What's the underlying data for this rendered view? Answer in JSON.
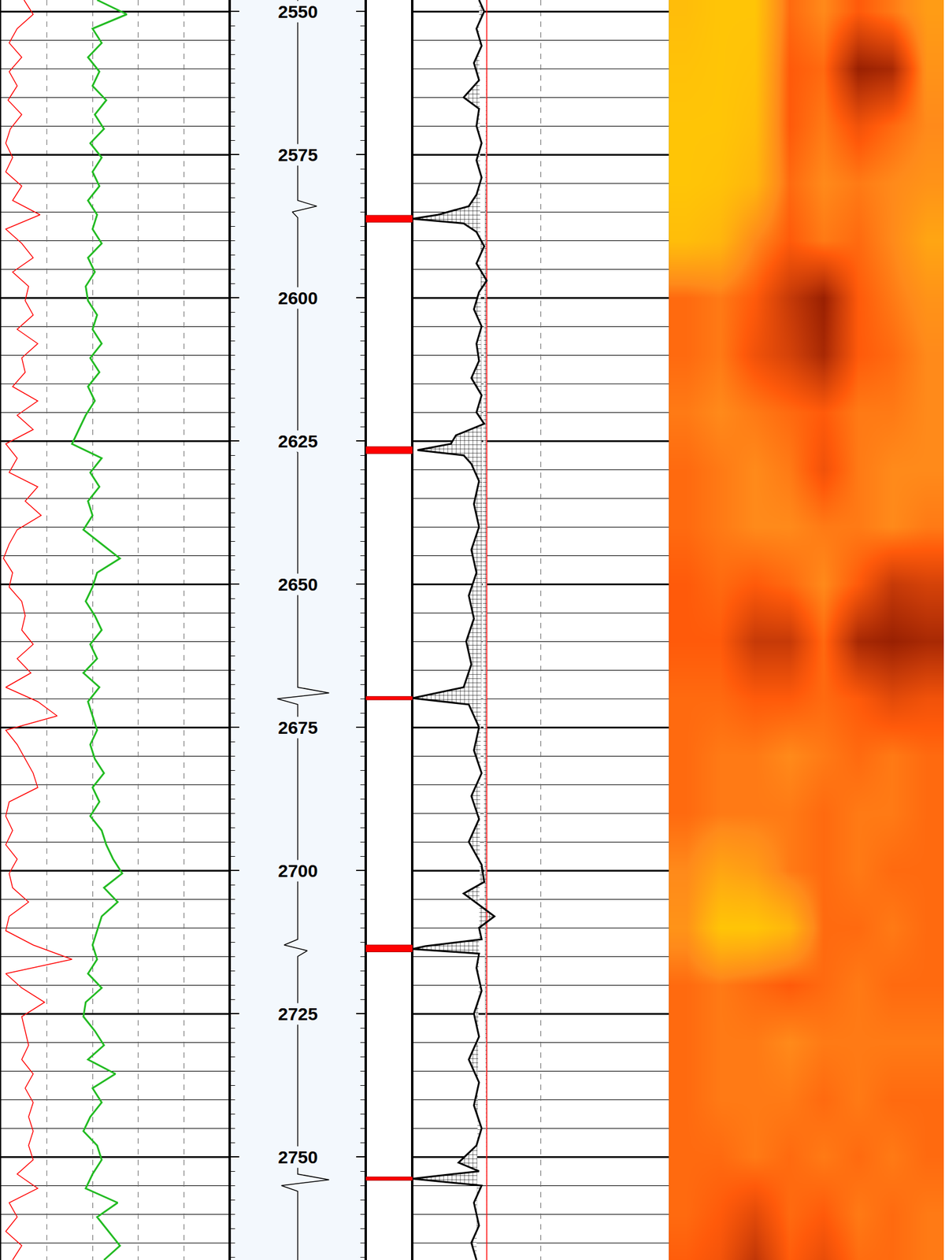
{
  "chart_data": {
    "type": "well_log",
    "ylim": [
      2768,
      2548
    ],
    "yticks": [
      2550,
      2575,
      2600,
      2625,
      2650,
      2675,
      2700,
      2725,
      2750
    ],
    "minor_yticks": [
      2550,
      2555,
      2560,
      2565,
      2570,
      2575,
      2580,
      2585,
      2590,
      2595,
      2600,
      2605,
      2610,
      2615,
      2620,
      2625,
      2630,
      2635,
      2640,
      2645,
      2650,
      2655,
      2660,
      2665,
      2670,
      2675,
      2680,
      2685,
      2690,
      2695,
      2700,
      2705,
      2710,
      2715,
      2720,
      2725,
      2730,
      2735,
      2740,
      2745,
      2750,
      2755,
      2760,
      2765
    ],
    "depth_ticks": [
      2550,
      2552.5,
      2555,
      2557.5,
      2560,
      2562.5,
      2565,
      2567.5,
      2570,
      2572.5,
      2575,
      2577.5,
      2580,
      2582.5,
      2585,
      2587.5,
      2590,
      2592.5,
      2595,
      2597.5,
      2600,
      2602.5,
      2605,
      2607.5,
      2610,
      2612.5,
      2615,
      2617.5,
      2620,
      2622.5,
      2625,
      2627.5,
      2630,
      2632.5,
      2635,
      2637.5,
      2640,
      2642.5,
      2645,
      2647.5,
      2650,
      2652.5,
      2655,
      2657.5,
      2660,
      2662.5,
      2665,
      2667.5,
      2670,
      2672.5,
      2675,
      2677.5,
      2680,
      2682.5,
      2685,
      2687.5,
      2690,
      2692.5,
      2695,
      2697.5,
      2700,
      2702.5,
      2705,
      2707.5,
      2710,
      2712.5,
      2715,
      2717.5,
      2720,
      2722.5,
      2725,
      2727.5,
      2730,
      2732.5,
      2735,
      2737.5,
      2740,
      2742.5,
      2745,
      2747.5,
      2750,
      2752.5,
      2755,
      2757.5,
      2760,
      2762.5,
      2765,
      2767.5
    ],
    "grid": true,
    "tick_labels": "y",
    "tracks": [
      {
        "type": "curves",
        "xlim": [
          0,
          100
        ],
        "xticks": [
          0,
          20,
          40,
          60,
          80,
          100
        ],
        "grid": true,
        "series": [
          {
            "color": "#ff0000",
            "line_style": "thin",
            "depths": [
              2548,
              2550.5,
              2553,
              2555.5,
              2558,
              2560.5,
              2563,
              2565.5,
              2568,
              2570.5,
              2573,
              2575.5,
              2578,
              2580.5,
              2583,
              2585.5,
              2588,
              2590.5,
              2593,
              2595.5,
              2598,
              2600.5,
              2603,
              2605.5,
              2608,
              2610.5,
              2613,
              2615.5,
              2618,
              2620.5,
              2623,
              2625.5,
              2628,
              2630.5,
              2633,
              2635.5,
              2638,
              2640.5,
              2643,
              2645.5,
              2648,
              2650.5,
              2653,
              2655.5,
              2658,
              2660.5,
              2663,
              2665.5,
              2668,
              2670.5,
              2673,
              2675.5,
              2678,
              2680.5,
              2683,
              2685.5,
              2688,
              2690.5,
              2693,
              2695.5,
              2698,
              2700.5,
              2703,
              2705.5,
              2708,
              2710.5,
              2713,
              2715.5,
              2718,
              2720.5,
              2723,
              2725.5,
              2728,
              2730.5,
              2733,
              2735.5,
              2738,
              2740.5,
              2743,
              2745.5,
              2748,
              2750.5,
              2753,
              2755.5,
              2758,
              2760.5,
              2763,
              2765.5,
              2768
            ],
            "values": [
              10,
              14,
              7,
              3.5,
              9,
              3.5,
              7,
              3,
              9,
              4,
              2,
              5,
              2,
              9,
              5,
              17,
              2,
              9,
              14,
              5,
              12,
              10.5,
              14,
              7,
              16,
              9,
              10.5,
              5,
              16,
              7,
              14,
              2,
              7,
              3.5,
              16,
              10.5,
              17.5,
              7,
              3.5,
              1,
              5,
              3.5,
              9,
              10.5,
              9,
              14,
              7,
              13,
              2,
              16,
              24.5,
              2,
              7,
              10.5,
              14,
              16,
              3.5,
              2,
              5,
              2,
              7,
              3.5,
              5,
              12,
              3.5,
              2,
              14,
              31,
              2,
              9,
              19,
              9,
              10.5,
              12,
              9,
              14,
              10.5,
              14,
              12,
              14,
              12,
              14,
              7,
              16,
              3.5,
              7,
              2,
              9,
              5
            ]
          },
          {
            "color": "#22bb22",
            "line_style": "bold",
            "depths": [
              2548,
              2550.5,
              2553,
              2555.5,
              2558,
              2560.5,
              2563,
              2565.5,
              2568,
              2570.5,
              2573,
              2575.5,
              2578,
              2580.5,
              2583,
              2585.5,
              2588,
              2590.5,
              2593,
              2595.5,
              2598,
              2600.5,
              2603,
              2605.5,
              2608,
              2610.5,
              2613,
              2615.5,
              2618,
              2620.5,
              2623,
              2625.5,
              2628,
              2630.5,
              2633,
              2635.5,
              2638,
              2640.5,
              2643,
              2645.5,
              2648,
              2650.5,
              2653,
              2655.5,
              2658,
              2660.5,
              2663,
              2665.5,
              2668,
              2670.5,
              2673,
              2675.5,
              2678,
              2680.5,
              2683,
              2685.5,
              2688,
              2690.5,
              2693,
              2695.5,
              2698,
              2700.5,
              2703,
              2705.5,
              2708,
              2710.5,
              2713,
              2715.5,
              2718,
              2720.5,
              2723,
              2725.5,
              2728,
              2730.5,
              2733,
              2735.5,
              2738,
              2740.5,
              2743,
              2745.5,
              2748,
              2750.5,
              2753,
              2755.5,
              2758,
              2760.5,
              2763,
              2765.5,
              2768
            ],
            "values": [
              42,
              55,
              40,
              44,
              38,
              43,
              40,
              46,
              41,
              45,
              39,
              44,
              40,
              43,
              38,
              42,
              40,
              44,
              38,
              41,
              37,
              38,
              42,
              40,
              44,
              39,
              43,
              38,
              41,
              37,
              34,
              31,
              44,
              39,
              43,
              38,
              40,
              36,
              44,
              52,
              42,
              40,
              37,
              41,
              44,
              39,
              42,
              36,
              43,
              38,
              40,
              42,
              39,
              41,
              45,
              40,
              43,
              39,
              44,
              46,
              49,
              53,
              45,
              51,
              44,
              42,
              40,
              42,
              38,
              44,
              37,
              36,
              41,
              45,
              38,
              50,
              40,
              44,
              39,
              36,
              42,
              44,
              40,
              37,
              51,
              42,
              47,
              52,
              45
            ]
          }
        ]
      },
      {
        "type": "depth",
        "xlim": [
          0,
          100
        ],
        "series": [
          {
            "color": "#000000",
            "line_style": "thin",
            "depths": [
              2548,
              2583,
              2584,
              2585,
              2586,
              2625,
              2626,
              2627,
              2668,
              2669,
              2670,
              2671,
              2712,
              2713,
              2714,
              2715,
              2753,
              2754,
              2755,
              2756,
              2768
            ],
            "values": [
              50,
              50,
              64,
              46,
              50,
              50,
              46,
              50,
              50,
              73,
              35,
              50,
              50,
              40,
              57,
              50,
              50,
              73,
              38,
              50,
              50
            ]
          }
        ]
      },
      {
        "type": "flags",
        "color": "#ff0000",
        "top": [
          2585.6,
          2626.0,
          2669.6,
          2713.0,
          2753.5
        ],
        "bottom": [
          2586.8,
          2627.2,
          2670.2,
          2714.2,
          2754.1
        ]
      },
      {
        "type": "curves",
        "xlim": [
          0,
          100
        ],
        "xticks": [
          0,
          50,
          100
        ],
        "grid": true,
        "cutoff": 29,
        "color": "#ff0000",
        "series": [
          {
            "color": "#000000",
            "line_style": "bold",
            "depths": [
              2548,
              2550,
              2553,
              2556,
              2559,
              2562,
              2565,
              2567,
              2570,
              2573,
              2576,
              2579,
              2582,
              2584,
              2585.5,
              2586.2,
              2587,
              2588.5,
              2591,
              2594,
              2597,
              2599,
              2602,
              2605,
              2608,
              2611,
              2614,
              2617,
              2620,
              2622,
              2624,
              2625.5,
              2626.6,
              2627.5,
              2629,
              2632,
              2636,
              2640,
              2644,
              2648,
              2652,
              2656,
              2660,
              2664,
              2668,
              2669.9,
              2671,
              2675,
              2679,
              2683,
              2687,
              2691,
              2695,
              2699,
              2702,
              2704,
              2706,
              2708,
              2710,
              2712,
              2713.2,
              2713.7,
              2714.5,
              2717,
              2721,
              2725,
              2729,
              2733,
              2737,
              2741,
              2745,
              2748,
              2751,
              2752.5,
              2753.8,
              2755,
              2758,
              2762,
              2765,
              2768
            ],
            "values": [
              26,
              28,
              25,
              27,
              24,
              26,
              20,
              26,
              25,
              27,
              25,
              27,
              25,
              22,
              10,
              0,
              20,
              25,
              28,
              25,
              29,
              26,
              24,
              27,
              25,
              26,
              23,
              27,
              25,
              28,
              17,
              15,
              2,
              20,
              23,
              26,
              24,
              26,
              23,
              25,
              22,
              24,
              21,
              23,
              20,
              0,
              22,
              26,
              24,
              27,
              23,
              26,
              22,
              27,
              28,
              20,
              26,
              32,
              26,
              27,
              5,
              0,
              26,
              25,
              27,
              24,
              26,
              22,
              26,
              24,
              27,
              25,
              18,
              26,
              0,
              27,
              24,
              26,
              23,
              25
            ]
          }
        ]
      },
      {
        "type": "heatmap",
        "xlim": [
          -0.5,
          7.5
        ],
        "x": [
          0,
          1,
          2,
          3,
          4,
          5,
          6,
          7
        ],
        "zlim": [
          0,
          100
        ],
        "depths": [
          2550,
          2560,
          2570,
          2580,
          2590,
          2600,
          2610,
          2620,
          2630,
          2640,
          2650,
          2660,
          2670,
          2680,
          2690,
          2700,
          2710,
          2720,
          2730,
          2740,
          2750,
          2760,
          2770
        ],
        "cells": [
          [
            15,
            10,
            10,
            55,
            45,
            60,
            50,
            35
          ],
          [
            12,
            10,
            12,
            60,
            55,
            95,
            90,
            40
          ],
          [
            10,
            10,
            15,
            60,
            50,
            65,
            55,
            45
          ],
          [
            10,
            12,
            20,
            55,
            45,
            50,
            45,
            40
          ],
          [
            15,
            20,
            45,
            60,
            50,
            55,
            45,
            30
          ],
          [
            55,
            50,
            60,
            80,
            95,
            60,
            50,
            40
          ],
          [
            55,
            50,
            65,
            75,
            90,
            60,
            55,
            45
          ],
          [
            50,
            45,
            50,
            55,
            60,
            50,
            50,
            45
          ],
          [
            55,
            50,
            45,
            50,
            65,
            50,
            45,
            45
          ],
          [
            55,
            50,
            45,
            45,
            50,
            50,
            45,
            50
          ],
          [
            60,
            55,
            60,
            55,
            45,
            60,
            80,
            75
          ],
          [
            60,
            60,
            80,
            80,
            55,
            90,
            95,
            90
          ],
          [
            55,
            55,
            60,
            60,
            55,
            60,
            70,
            65
          ],
          [
            55,
            50,
            50,
            45,
            50,
            55,
            50,
            55
          ],
          [
            55,
            50,
            50,
            50,
            55,
            50,
            50,
            55
          ],
          [
            45,
            30,
            35,
            50,
            55,
            50,
            55,
            55
          ],
          [
            40,
            10,
            10,
            20,
            55,
            55,
            50,
            55
          ],
          [
            55,
            50,
            55,
            60,
            55,
            50,
            55,
            55
          ],
          [
            55,
            50,
            50,
            45,
            50,
            50,
            50,
            50
          ],
          [
            55,
            50,
            50,
            50,
            55,
            50,
            55,
            55
          ],
          [
            55,
            55,
            50,
            55,
            50,
            55,
            50,
            55
          ],
          [
            55,
            60,
            70,
            55,
            60,
            50,
            55,
            50
          ],
          [
            60,
            65,
            85,
            60,
            70,
            55,
            55,
            50
          ]
        ]
      }
    ]
  }
}
